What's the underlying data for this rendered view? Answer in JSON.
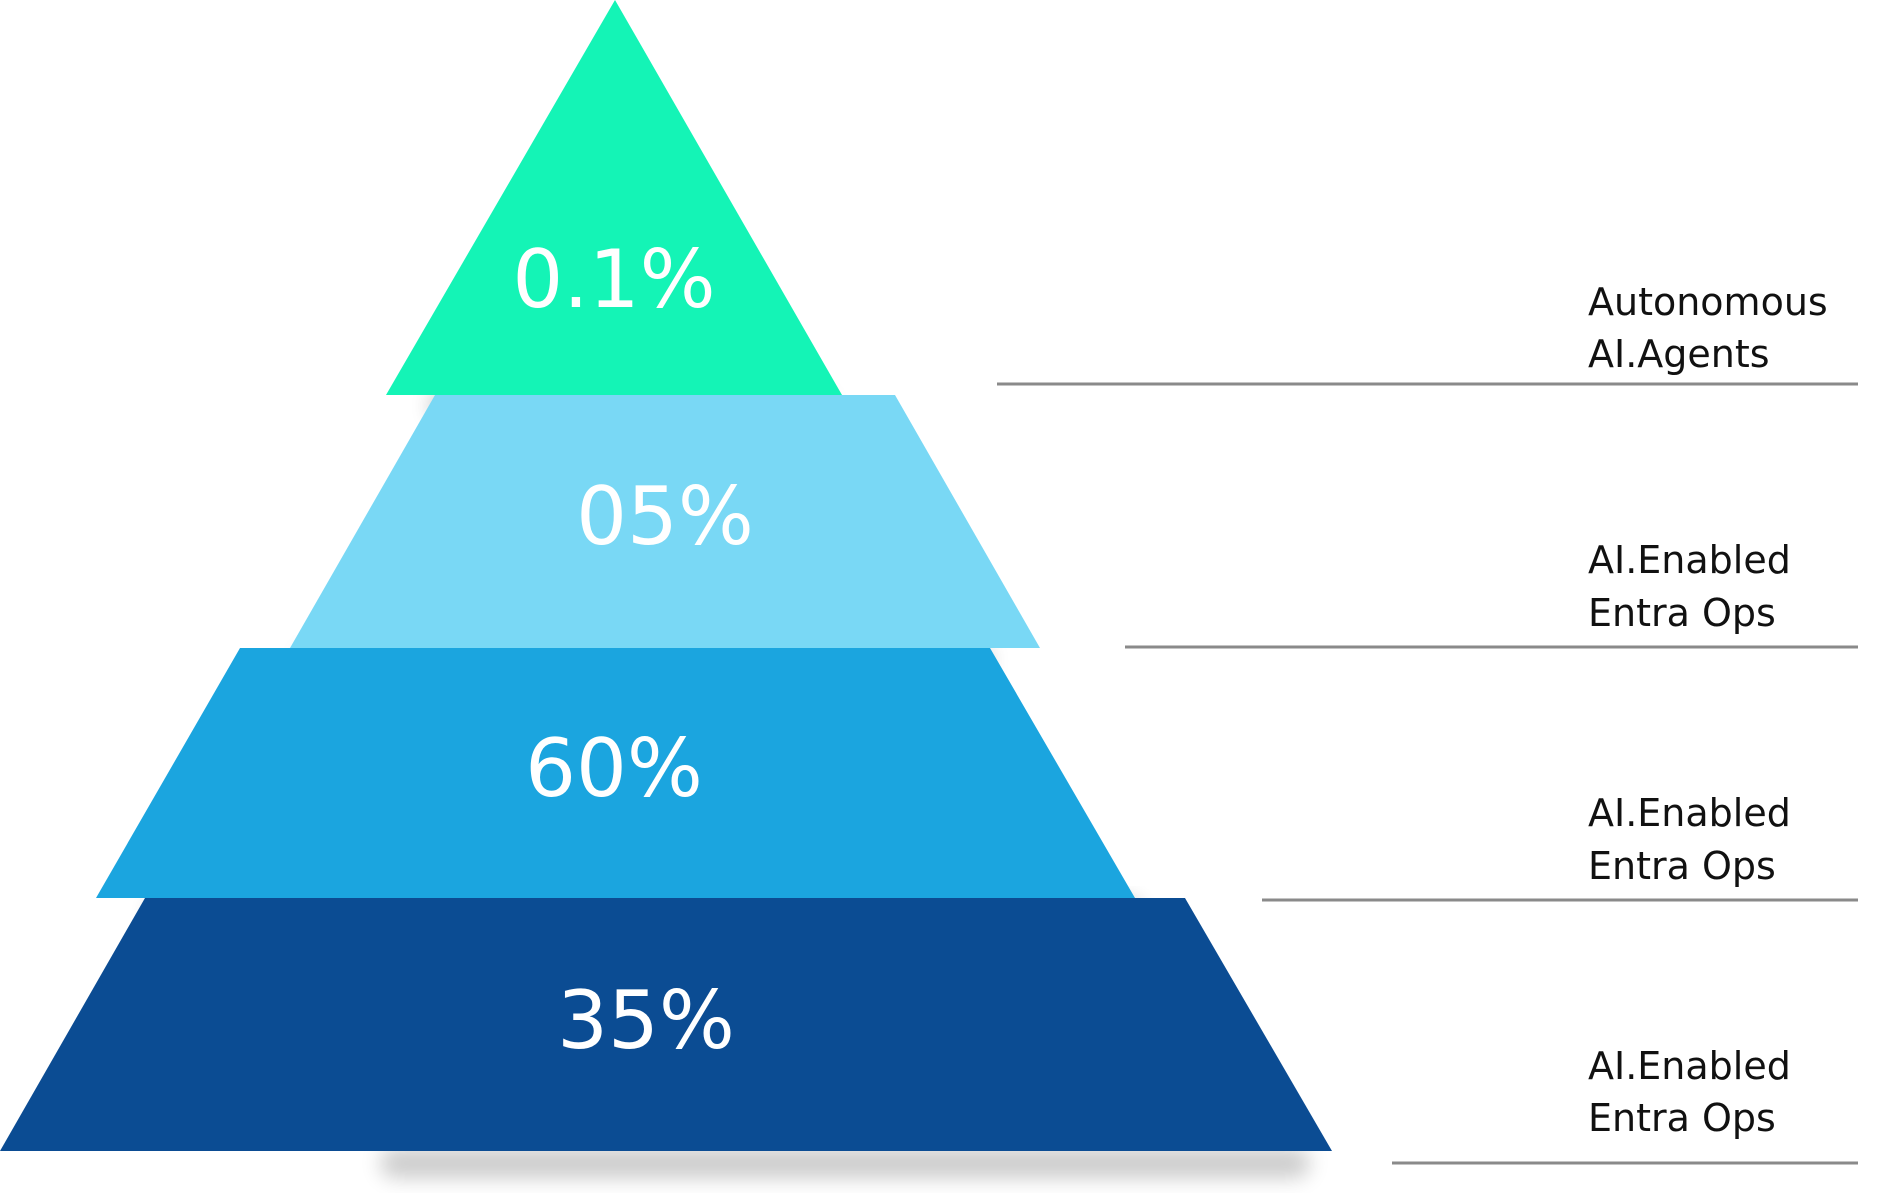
{
  "pyramid": {
    "tiers": [
      {
        "value": "0.1%",
        "label_line1": "Autonomous",
        "label_line2": "AI.Agents",
        "color": "#14F4B6"
      },
      {
        "value": "05%",
        "label_line1": "AI.Enabled",
        "label_line2": "Entra Ops",
        "color": "#79D8F5"
      },
      {
        "value": "60%",
        "label_line1": "AI.Enabled",
        "label_line2": "Entra Ops",
        "color": "#1BA5DF"
      },
      {
        "value": "35%",
        "label_line1": "AI.Enabled",
        "label_line2": "Entra Ops",
        "color": "#0B4C93"
      }
    ],
    "guide_line_color": "#8a8a8a"
  }
}
